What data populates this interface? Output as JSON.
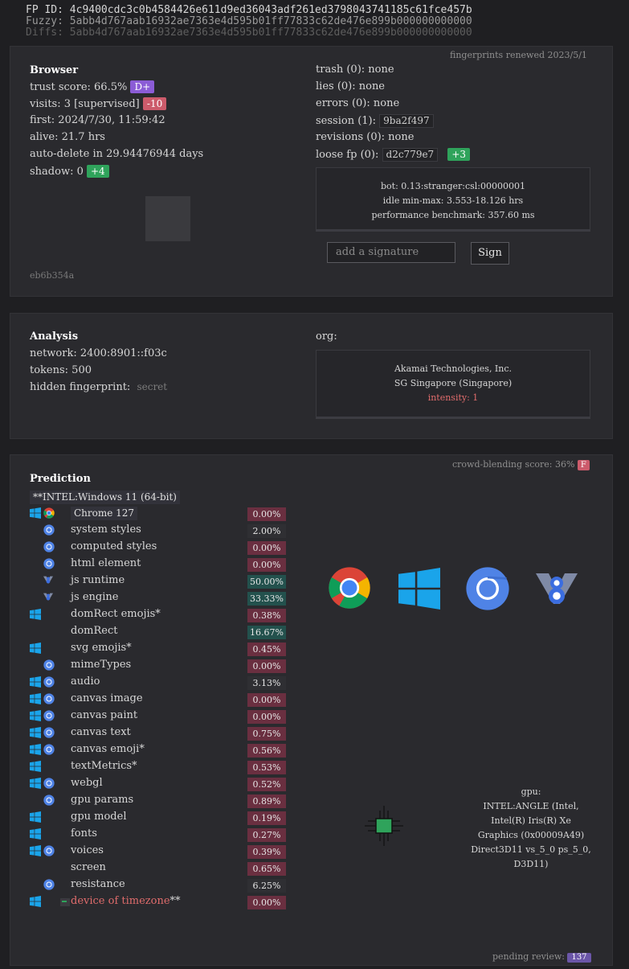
{
  "header": {
    "fp_id": "FP ID: 4c9400cdc3c0b4584426e611d9ed36043adf261ed3798043741185c61fce457b",
    "fuzzy": "Fuzzy: 5abb4d767aab16932ae7363e4d595b01ff77833c62de476e899b000000000000",
    "diffs": "Diffs: 5abb4d767aab16932ae7363e4d595b01ff77833c62de476e899b000000000000"
  },
  "browser": {
    "title": "Browser",
    "renewed": "fingerprints renewed 2023/5/1",
    "trust_score": "trust score: 66.5%",
    "trust_grade": "D+",
    "visits": "visits: 3 [supervised]",
    "visits_badge": "-10",
    "first": "first: 2024/7/30, 11:59:42",
    "alive": "alive: 21.7 hrs",
    "auto_delete": "auto-delete in 29.94476944 days",
    "shadow": "shadow: 0",
    "shadow_badge": "+4",
    "hash": "eb6b354a",
    "trash": "trash (0): none",
    "lies": "lies (0): none",
    "errors": "errors (0): none",
    "session_label": "session (1):",
    "session_value": "9ba2f497",
    "revisions": "revisions (0): none",
    "loose_label": "loose fp (0):",
    "loose_value": "d2c779e7",
    "loose_badge": "+3",
    "bot": "bot: 0.13:stranger:csl:00000001",
    "idle": "idle min-max: 3.553-18.126 hrs",
    "benchmark": "performance benchmark: 357.60 ms",
    "signature_placeholder": "add a signature",
    "sign_label": "Sign"
  },
  "analysis": {
    "title": "Analysis",
    "network": "network: 2400:8901::f03c",
    "tokens": "tokens: 500",
    "hidden_label": "hidden fingerprint:",
    "hidden_value": "secret",
    "org_label": "org:",
    "org_name": "Akamai Technologies, Inc.",
    "org_location": "SG Singapore (Singapore)",
    "intensity": "intensity: 1"
  },
  "prediction": {
    "title": "Prediction",
    "crowd_label": "crowd-blending score: 36%",
    "crowd_grade": "F",
    "os_chip": "**INTEL:Windows 11 (64-bit)",
    "browser_chip": "Chrome 127",
    "browser_value": "0.00%",
    "rows": [
      {
        "label": "system styles",
        "value": "2.00%",
        "style": "dark",
        "icons": [
          "",
          "chrome-blue-icon"
        ]
      },
      {
        "label": "computed styles",
        "value": "0.00%",
        "style": "red",
        "icons": [
          "",
          "chrome-blue-icon"
        ]
      },
      {
        "label": "html element",
        "value": "0.00%",
        "style": "red",
        "icons": [
          "",
          "chrome-blue-icon"
        ]
      },
      {
        "label": "js runtime",
        "value": "50.00%",
        "style": "teal",
        "icons": [
          "",
          "v8-icon"
        ]
      },
      {
        "label": "js engine",
        "value": "33.33%",
        "style": "teal",
        "icons": [
          "",
          "v8-icon"
        ]
      },
      {
        "label": "domRect emojis*",
        "value": "0.38%",
        "style": "red",
        "icons": [
          "windows-icon",
          ""
        ]
      },
      {
        "label": "domRect",
        "value": "16.67%",
        "style": "teal",
        "icons": [
          "",
          ""
        ]
      },
      {
        "label": "svg emojis*",
        "value": "0.45%",
        "style": "red",
        "icons": [
          "windows-icon",
          ""
        ]
      },
      {
        "label": "mimeTypes",
        "value": "0.00%",
        "style": "red",
        "icons": [
          "",
          "chrome-blue-icon"
        ]
      },
      {
        "label": "audio",
        "value": "3.13%",
        "style": "dark",
        "icons": [
          "windows-icon",
          "chrome-blue-icon"
        ]
      },
      {
        "label": "canvas image",
        "value": "0.00%",
        "style": "red",
        "icons": [
          "windows-icon",
          "chrome-blue-icon"
        ]
      },
      {
        "label": "canvas paint",
        "value": "0.00%",
        "style": "red",
        "icons": [
          "windows-icon",
          "chrome-blue-icon"
        ]
      },
      {
        "label": "canvas text",
        "value": "0.75%",
        "style": "red",
        "icons": [
          "windows-icon",
          "chrome-blue-icon"
        ]
      },
      {
        "label": "canvas emoji*",
        "value": "0.56%",
        "style": "red",
        "icons": [
          "windows-icon",
          "chrome-blue-icon"
        ]
      },
      {
        "label": "textMetrics*",
        "value": "0.53%",
        "style": "red",
        "icons": [
          "windows-icon",
          ""
        ]
      },
      {
        "label": "webgl",
        "value": "0.52%",
        "style": "red",
        "icons": [
          "windows-icon",
          "chrome-blue-icon"
        ]
      },
      {
        "label": "gpu params",
        "value": "0.89%",
        "style": "red",
        "icons": [
          "",
          "chrome-blue-icon"
        ]
      },
      {
        "label": "gpu model",
        "value": "0.19%",
        "style": "red",
        "icons": [
          "windows-icon",
          ""
        ]
      },
      {
        "label": "fonts",
        "value": "0.27%",
        "style": "red",
        "icons": [
          "windows-icon",
          ""
        ]
      },
      {
        "label": "voices",
        "value": "0.39%",
        "style": "red",
        "icons": [
          "windows-icon",
          "chrome-blue-icon"
        ]
      },
      {
        "label": "screen",
        "value": "0.65%",
        "style": "red",
        "icons": [
          "",
          ""
        ]
      },
      {
        "label": "resistance",
        "value": "6.25%",
        "style": "dark",
        "icons": [
          "",
          "chrome-blue-icon"
        ]
      },
      {
        "label": "device of timezone**",
        "value": "0.00%",
        "style": "red",
        "icons": [
          "windows-icon",
          "terminal-icon"
        ],
        "highlight": true
      }
    ],
    "gpu_label": "gpu:",
    "gpu_lines": [
      "INTEL:ANGLE (Intel,",
      "Intel(R) Iris(R) Xe",
      "Graphics (0x00009A49)",
      "Direct3D11 vs_5_0 ps_5_0,",
      "D3D11)"
    ],
    "pending_label": "pending review:",
    "pending_count": "137"
  },
  "colors": {
    "background": "#1f1f22",
    "panel": "#2a2a2e",
    "grade_purple": "#8b5cd6",
    "badge_red": "#cc5b6b",
    "badge_green": "#2fa35b",
    "value_red": "#6a2f40",
    "value_teal": "#23514d",
    "accent_red_text": "#e06c6c",
    "pending_badge": "#6b56a8"
  }
}
